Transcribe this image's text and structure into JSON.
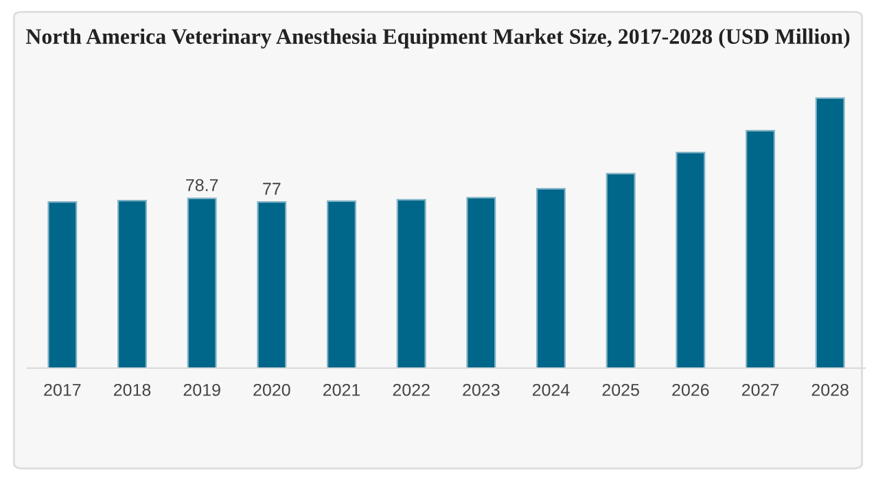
{
  "chart_data": {
    "type": "bar",
    "title": "North America Veterinary Anesthesia Equipment Market Size, 2017-2028 (USD Million)",
    "categories": [
      "2017",
      "2018",
      "2019",
      "2020",
      "2021",
      "2022",
      "2023",
      "2024",
      "2025",
      "2026",
      "2027",
      "2028"
    ],
    "values": [
      77.0,
      77.7,
      78.7,
      77,
      77.4,
      78.1,
      79.0,
      83.2,
      90.2,
      100.0,
      110.1,
      125.2
    ],
    "value_labels": [
      null,
      null,
      "78.7",
      "77",
      null,
      null,
      null,
      null,
      null,
      null,
      null,
      null
    ],
    "color": "#00668a",
    "tick_labels": "x",
    "grid": false,
    "legend": false
  }
}
